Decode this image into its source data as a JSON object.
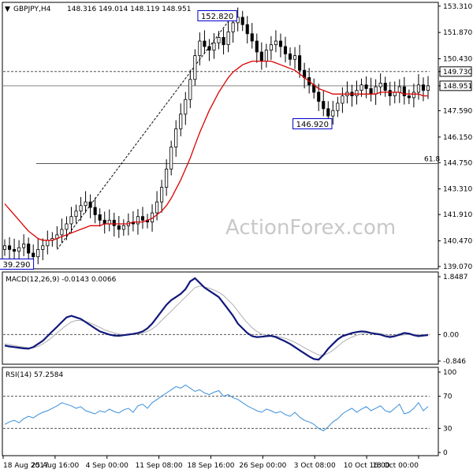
{
  "header": {
    "symbol": "GBPJPY,H4",
    "ohlc": "148.316 149.014 148.119 148.951"
  },
  "watermark": "ActionForex.com",
  "colors": {
    "candle": "#000000",
    "ma": "#dd0000",
    "macd": "#10187a",
    "signal": "#b0b0b0",
    "rsi": "#3a8fd9",
    "guide": "#555555",
    "box": "#0000cc"
  },
  "chart_data": [
    {
      "type": "line",
      "name": "price",
      "description_of_series": "H4 candlesticks (approximated closes) with moving average",
      "ylim": [
        139.07,
        153.3
      ],
      "y_ticks": [
        "153.310",
        "151.870",
        "150.430",
        "149.730",
        "148.951",
        "147.590",
        "146.150",
        "144.750",
        "143.310",
        "141.910",
        "140.470",
        "139.070"
      ],
      "x_tick_labels": [
        "18 Aug 2017",
        "25 Aug 16:00",
        "4 Sep 00:00",
        "11 Sep 08:00",
        "18 Sep 16:00",
        "26 Sep 00:00",
        "3 Oct 08:00",
        "10 Oct 16:00",
        "18 Oct 00:00"
      ],
      "closes": [
        140.2,
        140.0,
        139.9,
        140.1,
        140.3,
        139.8,
        139.6,
        140.0,
        140.2,
        140.5,
        140.6,
        140.8,
        141.1,
        141.4,
        141.8,
        142.1,
        142.4,
        142.6,
        142.3,
        141.9,
        141.6,
        141.4,
        141.6,
        141.3,
        141.1,
        141.3,
        141.5,
        141.4,
        141.8,
        141.6,
        141.5,
        142.0,
        142.6,
        143.4,
        144.4,
        145.6,
        146.6,
        147.4,
        148.2,
        149.3,
        150.6,
        151.4,
        151.1,
        150.9,
        151.3,
        151.6,
        151.2,
        151.9,
        152.4,
        152.7,
        152.3,
        151.8,
        151.4,
        150.8,
        150.3,
        150.9,
        151.2,
        151.4,
        151.1,
        150.7,
        150.4,
        150.6,
        149.8,
        149.4,
        149.0,
        148.6,
        148.1,
        147.7,
        147.3,
        147.6,
        148.0,
        148.4,
        148.6,
        148.4,
        148.7,
        149.0,
        148.8,
        148.5,
        148.9,
        149.1,
        148.7,
        148.4,
        148.6,
        148.9,
        148.4,
        148.3,
        148.6,
        149.0,
        148.7,
        148.951
      ],
      "ma_values": [
        142.5,
        142.2,
        141.9,
        141.6,
        141.3,
        141.0,
        140.8,
        140.6,
        140.5,
        140.5,
        140.5,
        140.6,
        140.7,
        140.8,
        140.9,
        141.0,
        141.1,
        141.2,
        141.3,
        141.3,
        141.3,
        141.4,
        141.4,
        141.4,
        141.4,
        141.4,
        141.4,
        141.5,
        141.5,
        141.5,
        141.6,
        141.7,
        141.9,
        142.1,
        142.4,
        142.8,
        143.3,
        143.8,
        144.4,
        145.0,
        145.7,
        146.4,
        147.0,
        147.6,
        148.1,
        148.6,
        149.0,
        149.4,
        149.7,
        149.9,
        150.1,
        150.2,
        150.3,
        150.3,
        150.3,
        150.3,
        150.3,
        150.2,
        150.1,
        150.0,
        149.9,
        149.8,
        149.6,
        149.4,
        149.2,
        149.0,
        148.8,
        148.7,
        148.6,
        148.5,
        148.5,
        148.5,
        148.5,
        148.5,
        148.5,
        148.5,
        148.5,
        148.5,
        148.5,
        148.6,
        148.6,
        148.6,
        148.6,
        148.6,
        148.5,
        148.5,
        148.5,
        148.5,
        148.4,
        148.4
      ],
      "annotations": {
        "high": "152.820",
        "low_left": "39.290",
        "swing_low": "146.920",
        "level": "149.730",
        "fib_label": "61.8"
      },
      "level_line": 149.73,
      "fib_line": 144.7,
      "trend_from": [
        140.0,
        152.82
      ]
    },
    {
      "type": "line",
      "name": "MACD",
      "title": "MACD(12,26,9) -0.0143 0.0066",
      "ylim": [
        -0.846,
        1.8487
      ],
      "y_ticks": [
        "1.8487",
        "0.00",
        "-0.846"
      ],
      "macd": [
        -0.35,
        -0.38,
        -0.4,
        -0.42,
        -0.44,
        -0.45,
        -0.4,
        -0.3,
        -0.2,
        -0.05,
        0.1,
        0.25,
        0.4,
        0.55,
        0.6,
        0.55,
        0.5,
        0.4,
        0.3,
        0.2,
        0.1,
        0.05,
        0.0,
        -0.03,
        -0.04,
        -0.02,
        0.0,
        0.02,
        0.05,
        0.1,
        0.2,
        0.35,
        0.55,
        0.75,
        0.95,
        1.1,
        1.2,
        1.3,
        1.45,
        1.7,
        1.8,
        1.65,
        1.5,
        1.4,
        1.3,
        1.2,
        1.0,
        0.8,
        0.6,
        0.35,
        0.2,
        0.05,
        -0.05,
        -0.08,
        -0.07,
        -0.05,
        -0.04,
        -0.08,
        -0.15,
        -0.22,
        -0.3,
        -0.4,
        -0.5,
        -0.6,
        -0.7,
        -0.78,
        -0.8,
        -0.65,
        -0.45,
        -0.3,
        -0.15,
        -0.05,
        0.0,
        0.05,
        0.08,
        0.1,
        0.09,
        0.05,
        0.02,
        0.0,
        -0.05,
        -0.08,
        -0.05,
        0.0,
        0.05,
        0.03,
        -0.02,
        -0.05,
        -0.03,
        -0.014
      ],
      "signal": [
        -0.3,
        -0.32,
        -0.35,
        -0.38,
        -0.4,
        -0.42,
        -0.42,
        -0.38,
        -0.3,
        -0.2,
        -0.08,
        0.05,
        0.18,
        0.3,
        0.4,
        0.45,
        0.45,
        0.42,
        0.37,
        0.3,
        0.23,
        0.15,
        0.1,
        0.05,
        0.02,
        0.0,
        0.0,
        0.0,
        0.02,
        0.05,
        0.1,
        0.18,
        0.3,
        0.45,
        0.6,
        0.75,
        0.9,
        1.05,
        1.2,
        1.35,
        1.5,
        1.55,
        1.52,
        1.48,
        1.42,
        1.35,
        1.25,
        1.1,
        0.95,
        0.75,
        0.55,
        0.38,
        0.22,
        0.1,
        0.02,
        -0.02,
        -0.04,
        -0.05,
        -0.08,
        -0.12,
        -0.18,
        -0.25,
        -0.33,
        -0.42,
        -0.5,
        -0.58,
        -0.65,
        -0.66,
        -0.6,
        -0.5,
        -0.38,
        -0.25,
        -0.15,
        -0.08,
        -0.02,
        0.02,
        0.05,
        0.06,
        0.05,
        0.03,
        0.0,
        -0.03,
        -0.04,
        -0.03,
        -0.01,
        0.0,
        0.0,
        -0.01,
        -0.01,
        0.007
      ]
    },
    {
      "type": "line",
      "name": "RSI",
      "title": "RSI(14) 57.2584",
      "ylim": [
        0,
        100
      ],
      "y_ticks": [
        "100",
        "70",
        "30",
        "0"
      ],
      "levels": [
        70,
        30
      ],
      "values": [
        35,
        38,
        40,
        37,
        42,
        45,
        43,
        47,
        50,
        52,
        55,
        58,
        62,
        60,
        58,
        55,
        57,
        52,
        50,
        48,
        52,
        50,
        54,
        51,
        49,
        53,
        55,
        50,
        58,
        60,
        55,
        62,
        66,
        70,
        74,
        78,
        82,
        80,
        84,
        80,
        76,
        78,
        74,
        72,
        75,
        77,
        70,
        72,
        68,
        66,
        62,
        58,
        55,
        52,
        50,
        54,
        52,
        49,
        51,
        47,
        45,
        50,
        44,
        40,
        38,
        35,
        30,
        27,
        32,
        38,
        42,
        48,
        52,
        55,
        50,
        54,
        57,
        52,
        55,
        58,
        52,
        50,
        55,
        60,
        48,
        50,
        55,
        62,
        52,
        57.26
      ]
    }
  ]
}
